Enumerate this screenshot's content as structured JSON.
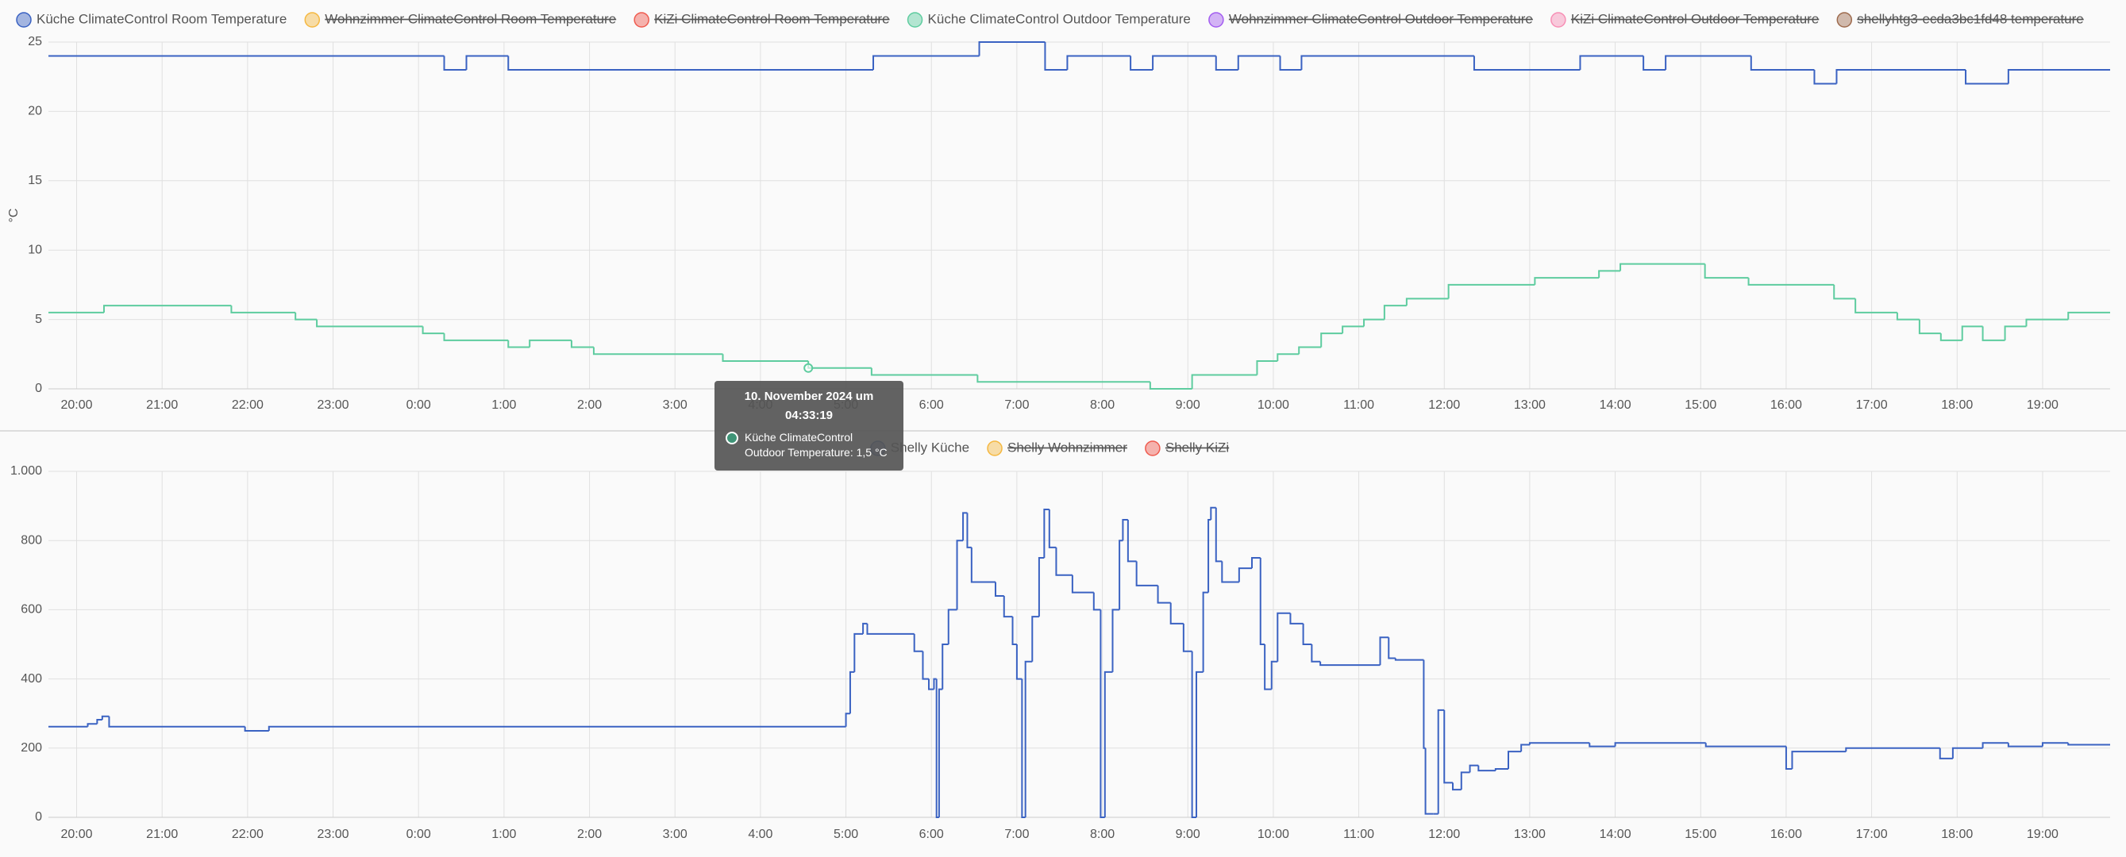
{
  "chart_data": [
    {
      "type": "line",
      "step": true,
      "y_label": "°C",
      "grid": true,
      "legend_position": "top",
      "xlim": [
        19.67,
        43.79
      ],
      "ylim": [
        0,
        25
      ],
      "yticks": [
        0,
        5,
        10,
        15,
        20,
        25
      ],
      "xticks": [
        {
          "value": 20,
          "label": "20:00"
        },
        {
          "value": 21,
          "label": "21:00"
        },
        {
          "value": 22,
          "label": "22:00"
        },
        {
          "value": 23,
          "label": "23:00"
        },
        {
          "value": 24,
          "label": "0:00"
        },
        {
          "value": 25,
          "label": "1:00"
        },
        {
          "value": 26,
          "label": "2:00"
        },
        {
          "value": 27,
          "label": "3:00"
        },
        {
          "value": 28,
          "label": "4:00"
        },
        {
          "value": 29,
          "label": "5:00"
        },
        {
          "value": 30,
          "label": "6:00"
        },
        {
          "value": 31,
          "label": "7:00"
        },
        {
          "value": 32,
          "label": "8:00"
        },
        {
          "value": 33,
          "label": "9:00"
        },
        {
          "value": 34,
          "label": "10:00"
        },
        {
          "value": 35,
          "label": "11:00"
        },
        {
          "value": 36,
          "label": "12:00"
        },
        {
          "value": 37,
          "label": "13:00"
        },
        {
          "value": 38,
          "label": "14:00"
        },
        {
          "value": 39,
          "label": "15:00"
        },
        {
          "value": 40,
          "label": "16:00"
        },
        {
          "value": 41,
          "label": "17:00"
        },
        {
          "value": 42,
          "label": "18:00"
        },
        {
          "value": 43,
          "label": "19:00"
        }
      ],
      "series": [
        {
          "name": "Küche ClimateControl Room Temperature",
          "color": "#3a62c2",
          "x": [
            19.67,
            24.3,
            24.56,
            25.05,
            29.32,
            30.56,
            31.33,
            31.59,
            32.33,
            32.59,
            33.33,
            33.59,
            34.08,
            34.33,
            36.35,
            37.59,
            38.33,
            38.59,
            39.59,
            40.33,
            40.59,
            42.1,
            42.6
          ],
          "values": [
            24,
            23,
            24,
            23,
            24,
            25,
            23,
            24,
            23,
            24,
            23,
            24,
            23,
            24,
            23,
            24,
            23,
            24,
            23,
            22,
            23,
            22,
            23
          ]
        },
        {
          "name": "Wohnzimmer ClimateControl Room Temperature",
          "color": "#f5b841",
          "hidden": true
        },
        {
          "name": "KiZi ClimateControl Room Temperature",
          "color": "#ef5b4f",
          "hidden": true
        },
        {
          "name": "Küche ClimateControl Outdoor Temperature",
          "color": "#5ecc9f",
          "x": [
            19.67,
            20.32,
            21.81,
            22.56,
            22.81,
            24.05,
            24.3,
            25.05,
            25.3,
            25.79,
            26.05,
            27.56,
            28.56,
            29.3,
            30.54,
            32.56,
            33.05,
            33.81,
            34.05,
            34.3,
            34.56,
            34.81,
            35.06,
            35.3,
            35.56,
            36.05,
            37.06,
            37.81,
            38.06,
            39.05,
            39.56,
            40.56,
            40.81,
            41.3,
            41.56,
            41.81,
            42.06,
            42.3,
            42.56,
            42.81,
            43.3
          ],
          "values": [
            5.5,
            6,
            5.5,
            5,
            4.5,
            4,
            3.5,
            3,
            3.5,
            3,
            2.5,
            2,
            1.5,
            1,
            0.5,
            0,
            1,
            2,
            2.5,
            3,
            4,
            4.5,
            5,
            6,
            6.5,
            7.5,
            8,
            8.5,
            9,
            8,
            7.5,
            6.5,
            5.5,
            5,
            4,
            3.5,
            4.5,
            3.5,
            4.5,
            5,
            5.5
          ]
        },
        {
          "name": "Wohnzimmer ClimateControl Outdoor Temperature",
          "color": "#a35df0",
          "hidden": true
        },
        {
          "name": "KiZi ClimateControl Outdoor Temperature",
          "color": "#f78fb5",
          "hidden": true
        },
        {
          "name": "shellyhtg3-ecda3bc1fd48 temperature",
          "color": "#9e6b4e",
          "hidden": true
        }
      ],
      "tooltip": {
        "title": "10. November 2024 um 04:33:19",
        "text": "Küche ClimateControl Outdoor Temperature: 1,5 °C"
      }
    },
    {
      "type": "line",
      "step": true,
      "grid": true,
      "legend_position": "top",
      "xlim": [
        19.67,
        43.79
      ],
      "ylim": [
        0,
        1000
      ],
      "yticks": [
        0,
        200,
        400,
        600,
        800,
        {
          "value": 1000,
          "label": "1.000"
        }
      ],
      "xticks": [
        {
          "value": 20,
          "label": "20:00"
        },
        {
          "value": 21,
          "label": "21:00"
        },
        {
          "value": 22,
          "label": "22:00"
        },
        {
          "value": 23,
          "label": "23:00"
        },
        {
          "value": 24,
          "label": "0:00"
        },
        {
          "value": 25,
          "label": "1:00"
        },
        {
          "value": 26,
          "label": "2:00"
        },
        {
          "value": 27,
          "label": "3:00"
        },
        {
          "value": 28,
          "label": "4:00"
        },
        {
          "value": 29,
          "label": "5:00"
        },
        {
          "value": 30,
          "label": "6:00"
        },
        {
          "value": 31,
          "label": "7:00"
        },
        {
          "value": 32,
          "label": "8:00"
        },
        {
          "value": 33,
          "label": "9:00"
        },
        {
          "value": 34,
          "label": "10:00"
        },
        {
          "value": 35,
          "label": "11:00"
        },
        {
          "value": 36,
          "label": "12:00"
        },
        {
          "value": 37,
          "label": "13:00"
        },
        {
          "value": 38,
          "label": "14:00"
        },
        {
          "value": 39,
          "label": "15:00"
        },
        {
          "value": 40,
          "label": "16:00"
        },
        {
          "value": 41,
          "label": "17:00"
        },
        {
          "value": 42,
          "label": "18:00"
        },
        {
          "value": 43,
          "label": "19:00"
        }
      ],
      "series": [
        {
          "name": "Shelly Küche",
          "color": "#3a62c2",
          "x": [
            19.67,
            20.13,
            20.24,
            20.3,
            20.38,
            21.97,
            22.25,
            29.0,
            29.05,
            29.1,
            29.2,
            29.25,
            29.8,
            29.9,
            29.97,
            30.03,
            30.06,
            30.09,
            30.13,
            30.2,
            30.3,
            30.37,
            30.42,
            30.47,
            30.75,
            30.85,
            30.95,
            31.0,
            31.06,
            31.1,
            31.18,
            31.26,
            31.32,
            31.38,
            31.46,
            31.65,
            31.9,
            31.98,
            32.03,
            32.12,
            32.2,
            32.24,
            32.3,
            32.4,
            32.65,
            32.8,
            32.95,
            33.05,
            33.1,
            33.18,
            33.24,
            33.27,
            33.33,
            33.4,
            33.6,
            33.75,
            33.85,
            33.9,
            33.98,
            34.05,
            34.2,
            34.35,
            34.45,
            34.55,
            35.25,
            35.35,
            35.43,
            35.76,
            35.78,
            35.87,
            35.93,
            36.0,
            36.1,
            36.2,
            36.3,
            36.4,
            36.6,
            36.75,
            36.9,
            37.0,
            37.7,
            38.0,
            39.06,
            40.0,
            40.07,
            40.7,
            41.8,
            41.95,
            42.3,
            42.6,
            43.0,
            43.3
          ],
          "values": [
            262,
            270,
            282,
            292,
            262,
            250,
            262,
            300,
            420,
            530,
            560,
            530,
            480,
            400,
            370,
            400,
            0,
            370,
            500,
            600,
            800,
            880,
            780,
            680,
            640,
            580,
            500,
            400,
            0,
            450,
            580,
            750,
            890,
            780,
            700,
            650,
            600,
            0,
            420,
            600,
            800,
            860,
            740,
            670,
            620,
            560,
            480,
            0,
            420,
            650,
            860,
            895,
            740,
            680,
            720,
            750,
            500,
            370,
            450,
            590,
            560,
            500,
            450,
            440,
            520,
            460,
            455,
            200,
            10,
            10,
            310,
            100,
            80,
            130,
            150,
            135,
            140,
            190,
            210,
            215,
            205,
            215,
            205,
            140,
            190,
            200,
            170,
            200,
            215,
            205,
            215,
            210
          ]
        },
        {
          "name": "Shelly Wohnzimmer",
          "color": "#f5b841",
          "hidden": true
        },
        {
          "name": "Shelly KiZi",
          "color": "#ef5b4f",
          "hidden": true
        }
      ]
    }
  ]
}
